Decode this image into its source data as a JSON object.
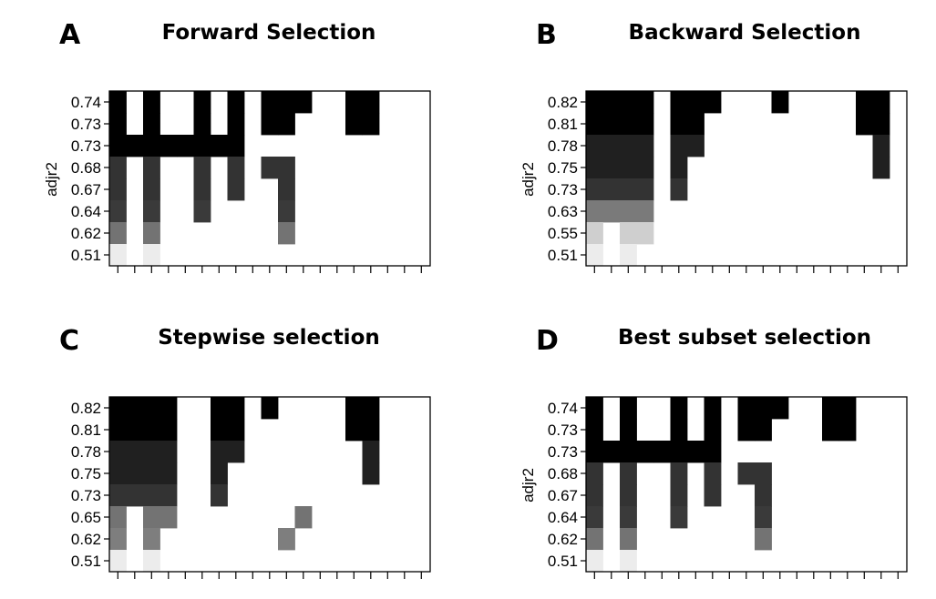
{
  "chart_data": [
    {
      "type": "heatmap",
      "panel": "A",
      "title": "Forward Selection",
      "ylabel": "adjr2",
      "num_columns": 19,
      "ytick_labels": [
        "0.74",
        "0.73",
        "0.73",
        "0.68",
        "0.67",
        "0.64",
        "0.62",
        "0.51"
      ],
      "row_colors": [
        "#000000",
        "#000000",
        "#000000",
        "#333333",
        "#333333",
        "#3a3a3a",
        "#737373",
        "#ececec"
      ],
      "cells": [
        [
          0,
          2,
          5,
          7,
          9,
          10,
          11,
          14,
          15
        ],
        [
          0,
          2,
          5,
          7,
          9,
          10,
          14,
          15
        ],
        [
          0,
          1,
          2,
          3,
          4,
          5,
          6,
          7
        ],
        [
          0,
          2,
          5,
          7,
          9,
          10
        ],
        [
          0,
          2,
          5,
          7,
          10
        ],
        [
          0,
          2,
          5,
          10
        ],
        [
          0,
          2,
          10
        ],
        [
          0,
          2
        ]
      ]
    },
    {
      "type": "heatmap",
      "panel": "B",
      "title": "Backward Selection",
      "ylabel": "adjr2",
      "num_columns": 19,
      "ytick_labels": [
        "0.82",
        "0.81",
        "0.78",
        "0.75",
        "0.73",
        "0.63",
        "0.55",
        "0.51"
      ],
      "row_colors": [
        "#000000",
        "#000000",
        "#202020",
        "#202020",
        "#333333",
        "#7a7a7a",
        "#cfcfcf",
        "#ececec"
      ],
      "cells": [
        [
          0,
          1,
          2,
          3,
          5,
          6,
          7,
          11,
          16,
          17
        ],
        [
          0,
          1,
          2,
          3,
          5,
          6,
          16,
          17
        ],
        [
          0,
          1,
          2,
          3,
          5,
          6,
          17
        ],
        [
          0,
          1,
          2,
          3,
          5,
          17
        ],
        [
          0,
          1,
          2,
          3,
          5
        ],
        [
          0,
          1,
          2,
          3
        ],
        [
          0,
          2,
          3
        ],
        [
          0,
          2
        ]
      ]
    },
    {
      "type": "heatmap",
      "panel": "C",
      "title": "Stepwise selection",
      "ylabel": "",
      "num_columns": 19,
      "ytick_labels": [
        "0.82",
        "0.81",
        "0.78",
        "0.75",
        "0.73",
        "0.65",
        "0.62",
        "0.51"
      ],
      "row_colors": [
        "#000000",
        "#000000",
        "#202020",
        "#202020",
        "#333333",
        "#737373",
        "#7e7e7e",
        "#ececec"
      ],
      "cells": [
        [
          0,
          1,
          2,
          3,
          6,
          7,
          9,
          14,
          15
        ],
        [
          0,
          1,
          2,
          3,
          6,
          7,
          14,
          15
        ],
        [
          0,
          1,
          2,
          3,
          6,
          7,
          15
        ],
        [
          0,
          1,
          2,
          3,
          6,
          15
        ],
        [
          0,
          1,
          2,
          3,
          6
        ],
        [
          0,
          2,
          3,
          11
        ],
        [
          0,
          2,
          10
        ],
        [
          0,
          2
        ]
      ]
    },
    {
      "type": "heatmap",
      "panel": "D",
      "title": "Best subset selection",
      "ylabel": "adjr2",
      "num_columns": 19,
      "ytick_labels": [
        "0.74",
        "0.73",
        "0.73",
        "0.68",
        "0.67",
        "0.64",
        "0.62",
        "0.51"
      ],
      "row_colors": [
        "#000000",
        "#000000",
        "#000000",
        "#333333",
        "#333333",
        "#3a3a3a",
        "#737373",
        "#ececec"
      ],
      "cells": [
        [
          0,
          2,
          5,
          7,
          9,
          10,
          11,
          14,
          15
        ],
        [
          0,
          2,
          5,
          7,
          9,
          10,
          14,
          15
        ],
        [
          0,
          1,
          2,
          3,
          4,
          5,
          6,
          7
        ],
        [
          0,
          2,
          5,
          7,
          9,
          10
        ],
        [
          0,
          2,
          5,
          7,
          10
        ],
        [
          0,
          2,
          5,
          10
        ],
        [
          0,
          2,
          10
        ],
        [
          0,
          2
        ]
      ]
    }
  ]
}
